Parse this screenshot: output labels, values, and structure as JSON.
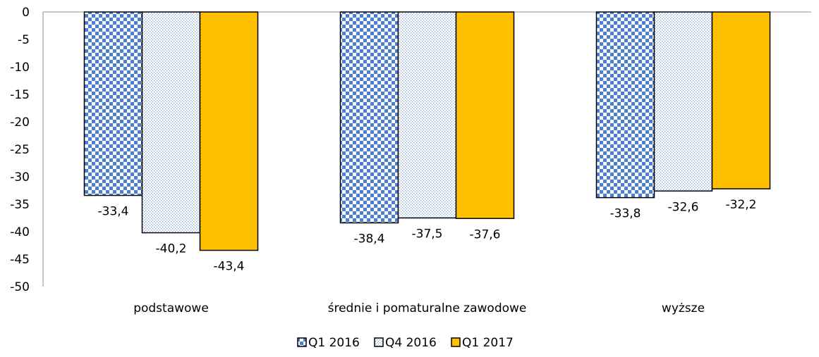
{
  "chart_data": {
    "type": "bar",
    "categories": [
      "podstawowe",
      "średnie i pomaturalne zawodowe",
      "wyższe"
    ],
    "series": [
      {
        "name": "Q1 2016",
        "values": [
          -33.4,
          -38.4,
          -33.8
        ],
        "value_labels": [
          "-33,4",
          "-38,4",
          "-33,8"
        ],
        "pattern": "checker-blue"
      },
      {
        "name": "Q4 2016",
        "values": [
          -40.2,
          -37.5,
          -32.6
        ],
        "value_labels": [
          "-40,2",
          "-37,5",
          "-32,6"
        ],
        "pattern": "dotted-blue"
      },
      {
        "name": "Q1 2017",
        "values": [
          -43.4,
          -37.6,
          -32.2
        ],
        "value_labels": [
          "-43,4",
          "-37,6",
          "-32,2"
        ],
        "color": "#FFC000"
      }
    ],
    "ylim": [
      -50,
      0
    ],
    "yticks": [
      0,
      -5,
      -10,
      -15,
      -20,
      -25,
      -30,
      -35,
      -40,
      -45,
      -50
    ],
    "grid": false,
    "legend_position": "bottom",
    "colors": {
      "checker_blue": "#4A7FD4",
      "dotted_blue": "#7FA8E0",
      "gold": "#FFC000"
    }
  }
}
